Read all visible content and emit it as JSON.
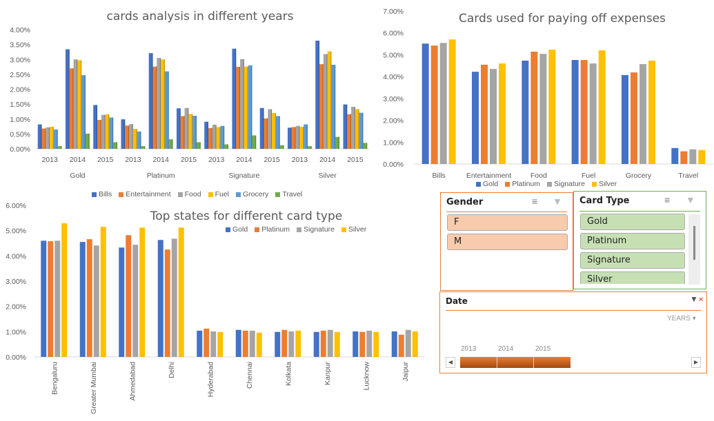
{
  "colors": {
    "Bills": "#4472C4",
    "Entertainment": "#ED7D31",
    "Food": "#A5A5A5",
    "Fuel": "#FFC000",
    "Grocery": "#5B9BD5",
    "Travel": "#70AD47",
    "Gold": "#4472C4",
    "Platinum": "#ED7D31",
    "Signature": "#A5A5A5",
    "Silver": "#FFC000"
  },
  "chart_data": [
    {
      "type": "bar",
      "title": "cards analysis in different years",
      "groups": [
        "Gold",
        "Platinum",
        "Signature",
        "Silver"
      ],
      "categories": [
        "2013",
        "2014",
        "2015",
        "2013",
        "2014",
        "2015",
        "2013",
        "2014",
        "2015",
        "2013",
        "2014",
        "2015"
      ],
      "ylim": [
        0,
        4
      ],
      "yticks": [
        "0.00%",
        "0.50%",
        "1.00%",
        "1.50%",
        "2.00%",
        "2.50%",
        "3.00%",
        "3.50%",
        "4.00%"
      ],
      "legend": "bottom",
      "grid": false,
      "series": [
        {
          "name": "Bills",
          "values": [
            0.82,
            3.34,
            1.47,
            0.99,
            3.21,
            1.36,
            0.91,
            3.36,
            1.37,
            0.71,
            3.63,
            1.49
          ]
        },
        {
          "name": "Entertainment",
          "values": [
            0.68,
            2.7,
            0.97,
            0.78,
            2.76,
            1.1,
            0.7,
            2.75,
            1.02,
            0.73,
            2.84,
            1.16
          ]
        },
        {
          "name": "Food",
          "values": [
            0.72,
            3.0,
            1.14,
            0.83,
            3.05,
            1.37,
            0.81,
            3.01,
            1.33,
            0.77,
            3.18,
            1.41
          ]
        },
        {
          "name": "Fuel",
          "values": [
            0.74,
            2.97,
            1.16,
            0.67,
            3.0,
            1.17,
            0.73,
            2.76,
            1.2,
            0.74,
            3.27,
            1.33
          ]
        },
        {
          "name": "Grocery",
          "values": [
            0.65,
            2.47,
            1.05,
            0.58,
            2.6,
            1.11,
            0.77,
            2.8,
            1.1,
            0.82,
            2.82,
            1.21
          ]
        },
        {
          "name": "Travel",
          "values": [
            0.09,
            0.51,
            0.22,
            0.09,
            0.32,
            0.22,
            0.15,
            0.45,
            0.12,
            0.09,
            0.4,
            0.2
          ]
        }
      ]
    },
    {
      "type": "bar",
      "title": "Cards used for paying off expenses",
      "categories": [
        "Bills",
        "Entertainment",
        "Food",
        "Fuel",
        "Grocery",
        "Travel"
      ],
      "ylim": [
        0,
        7
      ],
      "yticks": [
        "0.00%",
        "1.00%",
        "2.00%",
        "3.00%",
        "4.00%",
        "5.00%",
        "6.00%",
        "7.00%"
      ],
      "legend": "bottom",
      "grid": false,
      "series": [
        {
          "name": "Gold",
          "values": [
            5.51,
            4.22,
            4.73,
            4.76,
            4.07,
            0.73
          ]
        },
        {
          "name": "Platinum",
          "values": [
            5.42,
            4.54,
            5.14,
            4.76,
            4.19,
            0.58
          ]
        },
        {
          "name": "Signature",
          "values": [
            5.54,
            4.35,
            5.04,
            4.6,
            4.57,
            0.67
          ]
        },
        {
          "name": "Silver",
          "values": [
            5.7,
            4.6,
            5.23,
            5.2,
            4.73,
            0.64
          ]
        }
      ]
    },
    {
      "type": "bar",
      "title": "Top states for different card type",
      "categories": [
        "Bengaluru",
        "Greater Mumbai",
        "Ahmedabad",
        "Delhi",
        "Hyderabad",
        "Chennai",
        "Kolkata",
        "Kanpur",
        "Lucknow",
        "Jaipur"
      ],
      "ylim": [
        0,
        6
      ],
      "yticks": [
        "0.00%",
        "1.00%",
        "2.00%",
        "3.00%",
        "4.00%",
        "5.00%",
        "6.00%"
      ],
      "legend": "top",
      "grid": false,
      "series": [
        {
          "name": "Gold",
          "values": [
            4.6,
            4.55,
            4.33,
            4.63,
            1.04,
            1.07,
            0.99,
            0.99,
            1.01,
            1.01
          ]
        },
        {
          "name": "Platinum",
          "values": [
            4.58,
            4.66,
            4.82,
            4.25,
            1.12,
            1.04,
            1.07,
            1.04,
            0.99,
            0.88
          ]
        },
        {
          "name": "Signature",
          "values": [
            4.6,
            4.41,
            4.44,
            4.68,
            1.01,
            1.04,
            1.01,
            1.07,
            1.04,
            1.07
          ]
        },
        {
          "name": "Silver",
          "values": [
            5.29,
            5.15,
            5.12,
            5.12,
            0.99,
            0.96,
            1.04,
            0.99,
            0.99,
            1.01
          ]
        }
      ]
    }
  ],
  "slicers": {
    "gender": {
      "title": "Gender",
      "items": [
        "F",
        "M"
      ]
    },
    "card_type": {
      "title": "Card Type",
      "items": [
        "Gold",
        "Platinum",
        "Signature",
        "Silver"
      ]
    },
    "date": {
      "title": "Date",
      "level": "YEARS",
      "years": [
        "2013",
        "2014",
        "2015"
      ]
    }
  }
}
